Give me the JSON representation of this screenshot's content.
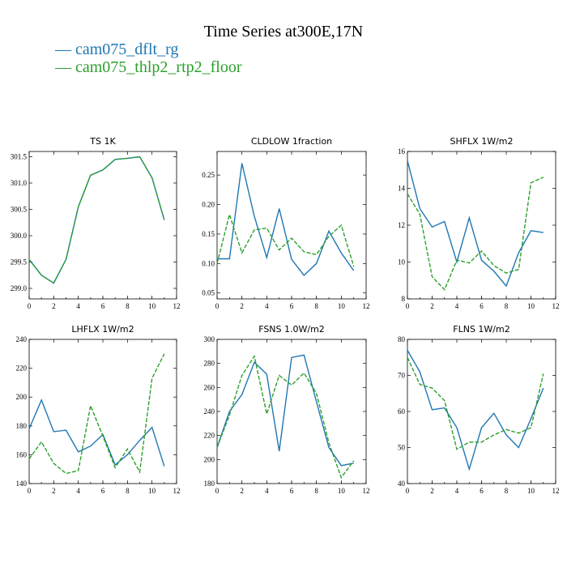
{
  "title": "Time Series at300E,17N",
  "legend": [
    {
      "label": "cam075_dflt_rg",
      "color": "#1f77b4"
    },
    {
      "label": "cam075_thlp2_rtp2_floor",
      "color": "#2ca02c"
    }
  ],
  "chart_data": [
    {
      "type": "line",
      "title": "TS   1K",
      "x": [
        0,
        1,
        2,
        3,
        4,
        5,
        6,
        7,
        8,
        9,
        10,
        11
      ],
      "xlim": [
        0,
        12
      ],
      "xticks": [
        0,
        2,
        4,
        6,
        8,
        10,
        12
      ],
      "ylim": [
        298.8,
        301.6
      ],
      "yticks": [
        299.0,
        299.5,
        300.0,
        300.5,
        301.0,
        301.5
      ],
      "ytick_decimals": 1,
      "series": [
        {
          "name": "cam075_dflt_rg",
          "values": [
            299.55,
            299.25,
            299.1,
            299.55,
            300.55,
            301.15,
            301.25,
            301.45,
            301.47,
            301.5,
            301.1,
            300.3
          ]
        },
        {
          "name": "cam075_thlp2_rtp2_floor",
          "values": [
            299.55,
            299.25,
            299.1,
            299.55,
            300.55,
            301.15,
            301.25,
            301.45,
            301.47,
            301.5,
            301.1,
            300.3
          ]
        }
      ]
    },
    {
      "type": "line",
      "title": "CLDLOW   1fraction",
      "x": [
        0,
        1,
        2,
        3,
        4,
        5,
        6,
        7,
        8,
        9,
        10,
        11
      ],
      "xlim": [
        0,
        12
      ],
      "xticks": [
        0,
        2,
        4,
        6,
        8,
        10,
        12
      ],
      "ylim": [
        0.04,
        0.29
      ],
      "yticks": [
        0.05,
        0.1,
        0.15,
        0.2,
        0.25
      ],
      "ytick_decimals": 2,
      "series": [
        {
          "name": "cam075_dflt_rg",
          "values": [
            0.108,
            0.108,
            0.27,
            0.18,
            0.11,
            0.193,
            0.107,
            0.08,
            0.1,
            0.155,
            0.118,
            0.088
          ]
        },
        {
          "name": "cam075_thlp2_rtp2_floor",
          "values": [
            0.1,
            0.183,
            0.118,
            0.157,
            0.16,
            0.123,
            0.143,
            0.12,
            0.115,
            0.146,
            0.165,
            0.095
          ]
        }
      ]
    },
    {
      "type": "line",
      "title": "SHFLX   1W/m2",
      "x": [
        0,
        1,
        2,
        3,
        4,
        5,
        6,
        7,
        8,
        9,
        10,
        11
      ],
      "xlim": [
        0,
        12
      ],
      "xticks": [
        0,
        2,
        4,
        6,
        8,
        10,
        12
      ],
      "ylim": [
        8,
        16
      ],
      "yticks": [
        8,
        10,
        12,
        14,
        16
      ],
      "ytick_decimals": 0,
      "series": [
        {
          "name": "cam075_dflt_rg",
          "values": [
            15.5,
            12.9,
            11.9,
            12.2,
            10.0,
            12.4,
            10.1,
            9.5,
            8.7,
            10.5,
            11.7,
            11.6
          ]
        },
        {
          "name": "cam075_thlp2_rtp2_floor",
          "values": [
            13.7,
            12.6,
            9.2,
            8.5,
            10.1,
            9.95,
            10.6,
            9.8,
            9.4,
            9.6,
            14.3,
            14.6
          ]
        }
      ]
    },
    {
      "type": "line",
      "title": "LHFLX   1W/m2",
      "x": [
        0,
        1,
        2,
        3,
        4,
        5,
        6,
        7,
        8,
        9,
        10,
        11
      ],
      "xlim": [
        0,
        12
      ],
      "xticks": [
        0,
        2,
        4,
        6,
        8,
        10,
        12
      ],
      "ylim": [
        140,
        240
      ],
      "yticks": [
        140,
        160,
        180,
        200,
        220,
        240
      ],
      "ytick_decimals": 0,
      "series": [
        {
          "name": "cam075_dflt_rg",
          "values": [
            178,
            198,
            176,
            177,
            162,
            166,
            174,
            153,
            160,
            170,
            179,
            152
          ]
        },
        {
          "name": "cam075_thlp2_rtp2_floor",
          "values": [
            157,
            169,
            154,
            147,
            149,
            194,
            173,
            151,
            164,
            148,
            213,
            230
          ]
        }
      ]
    },
    {
      "type": "line",
      "title": "FSNS   1.0W/m2",
      "x": [
        0,
        1,
        2,
        3,
        4,
        5,
        6,
        7,
        8,
        9,
        10,
        11
      ],
      "xlim": [
        0,
        12
      ],
      "xticks": [
        0,
        2,
        4,
        6,
        8,
        10,
        12
      ],
      "ylim": [
        180,
        300
      ],
      "yticks": [
        180,
        200,
        220,
        240,
        260,
        280,
        300
      ],
      "ytick_decimals": 0,
      "series": [
        {
          "name": "cam075_dflt_rg",
          "values": [
            210,
            240,
            254,
            281,
            271,
            207,
            285,
            287,
            248,
            210,
            195,
            197
          ]
        },
        {
          "name": "cam075_thlp2_rtp2_floor",
          "values": [
            210,
            237,
            270,
            286,
            238,
            270,
            262,
            272,
            255,
            214,
            185,
            199
          ]
        }
      ]
    },
    {
      "type": "line",
      "title": "FLNS   1W/m2",
      "x": [
        0,
        1,
        2,
        3,
        4,
        5,
        6,
        7,
        8,
        9,
        10,
        11
      ],
      "xlim": [
        0,
        12
      ],
      "xticks": [
        0,
        2,
        4,
        6,
        8,
        10,
        12
      ],
      "ylim": [
        40,
        80
      ],
      "yticks": [
        40,
        50,
        60,
        70,
        80
      ],
      "ytick_decimals": 0,
      "series": [
        {
          "name": "cam075_dflt_rg",
          "values": [
            77,
            71,
            60.5,
            61,
            55.5,
            44,
            55.5,
            59.5,
            53.5,
            50,
            58,
            66.5
          ]
        },
        {
          "name": "cam075_thlp2_rtp2_floor",
          "values": [
            75,
            67.5,
            66.5,
            63,
            49.5,
            51.5,
            51.5,
            53.5,
            55,
            54,
            55.5,
            70.5
          ]
        }
      ]
    }
  ]
}
